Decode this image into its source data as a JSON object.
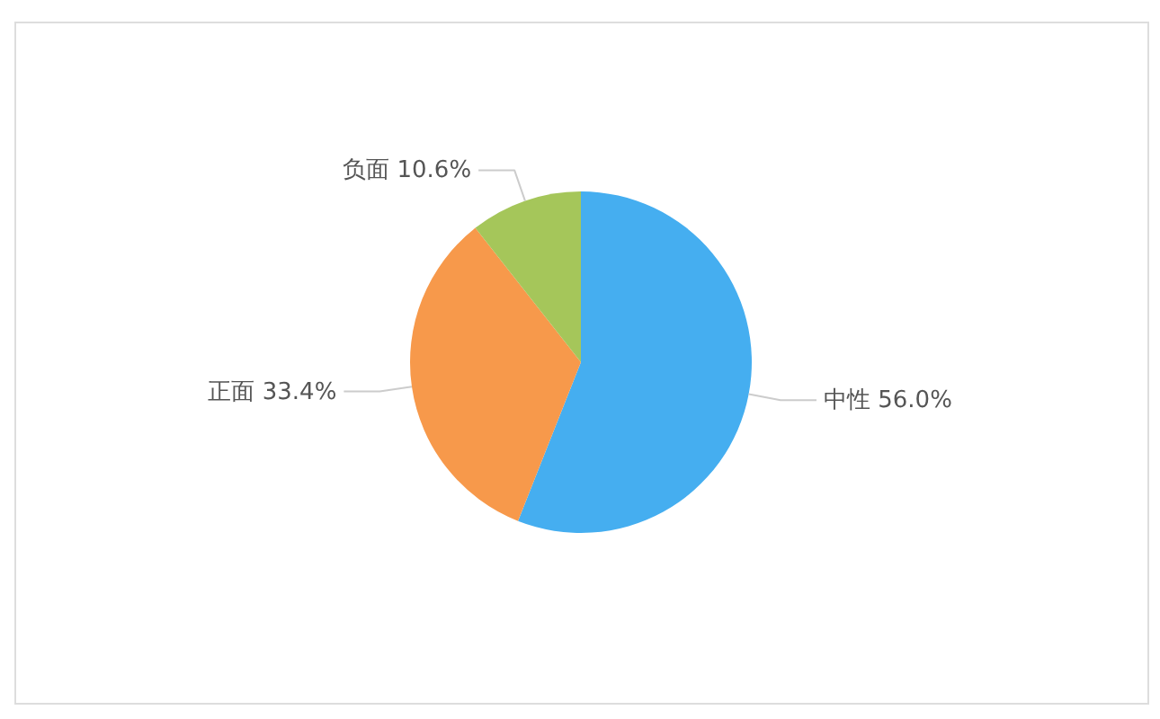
{
  "chart_data": {
    "type": "pie",
    "categories": [
      "中性",
      "正面",
      "负面"
    ],
    "values": [
      56.0,
      33.4,
      10.6
    ],
    "colors": [
      "#45aef0",
      "#f7994b",
      "#a5c65a"
    ],
    "value_labels": [
      "56.0%",
      "33.4%",
      "10.6%"
    ]
  }
}
